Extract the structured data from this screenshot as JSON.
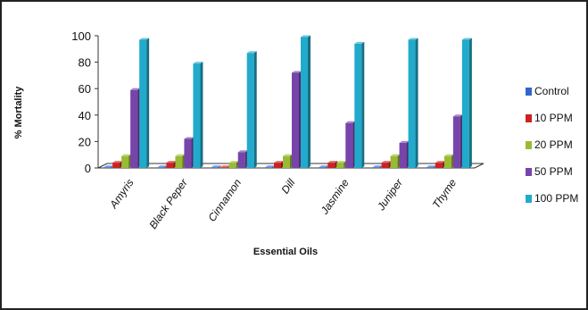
{
  "chart_data": {
    "type": "bar",
    "title": "",
    "xlabel": "Essential Oils",
    "ylabel": "% Mortality",
    "ylim": [
      0,
      100
    ],
    "yticks": [
      0,
      20,
      40,
      60,
      80,
      100
    ],
    "grid": false,
    "legend_position": "right",
    "categories": [
      "Amyris",
      "Black Peper",
      "Cinnamon",
      "Dill",
      "Jasmine",
      "Juniper",
      "Thyme"
    ],
    "series": [
      {
        "name": "Control",
        "color": "#3366cc",
        "values": [
          0,
          0,
          0,
          0,
          0,
          0,
          0
        ]
      },
      {
        "name": "10 PPM",
        "color": "#cc2222",
        "values": [
          4,
          4,
          0,
          4,
          4,
          4,
          4
        ]
      },
      {
        "name": "20 PPM",
        "color": "#99bb33",
        "values": [
          9,
          9,
          4,
          9,
          4,
          9,
          9
        ]
      },
      {
        "name": "50 PPM",
        "color": "#7744aa",
        "values": [
          59,
          22,
          12,
          72,
          34,
          19,
          39
        ]
      },
      {
        "name": "100 PPM",
        "color": "#22aacc",
        "values": [
          97,
          79,
          87,
          99,
          94,
          97,
          97
        ]
      }
    ]
  }
}
